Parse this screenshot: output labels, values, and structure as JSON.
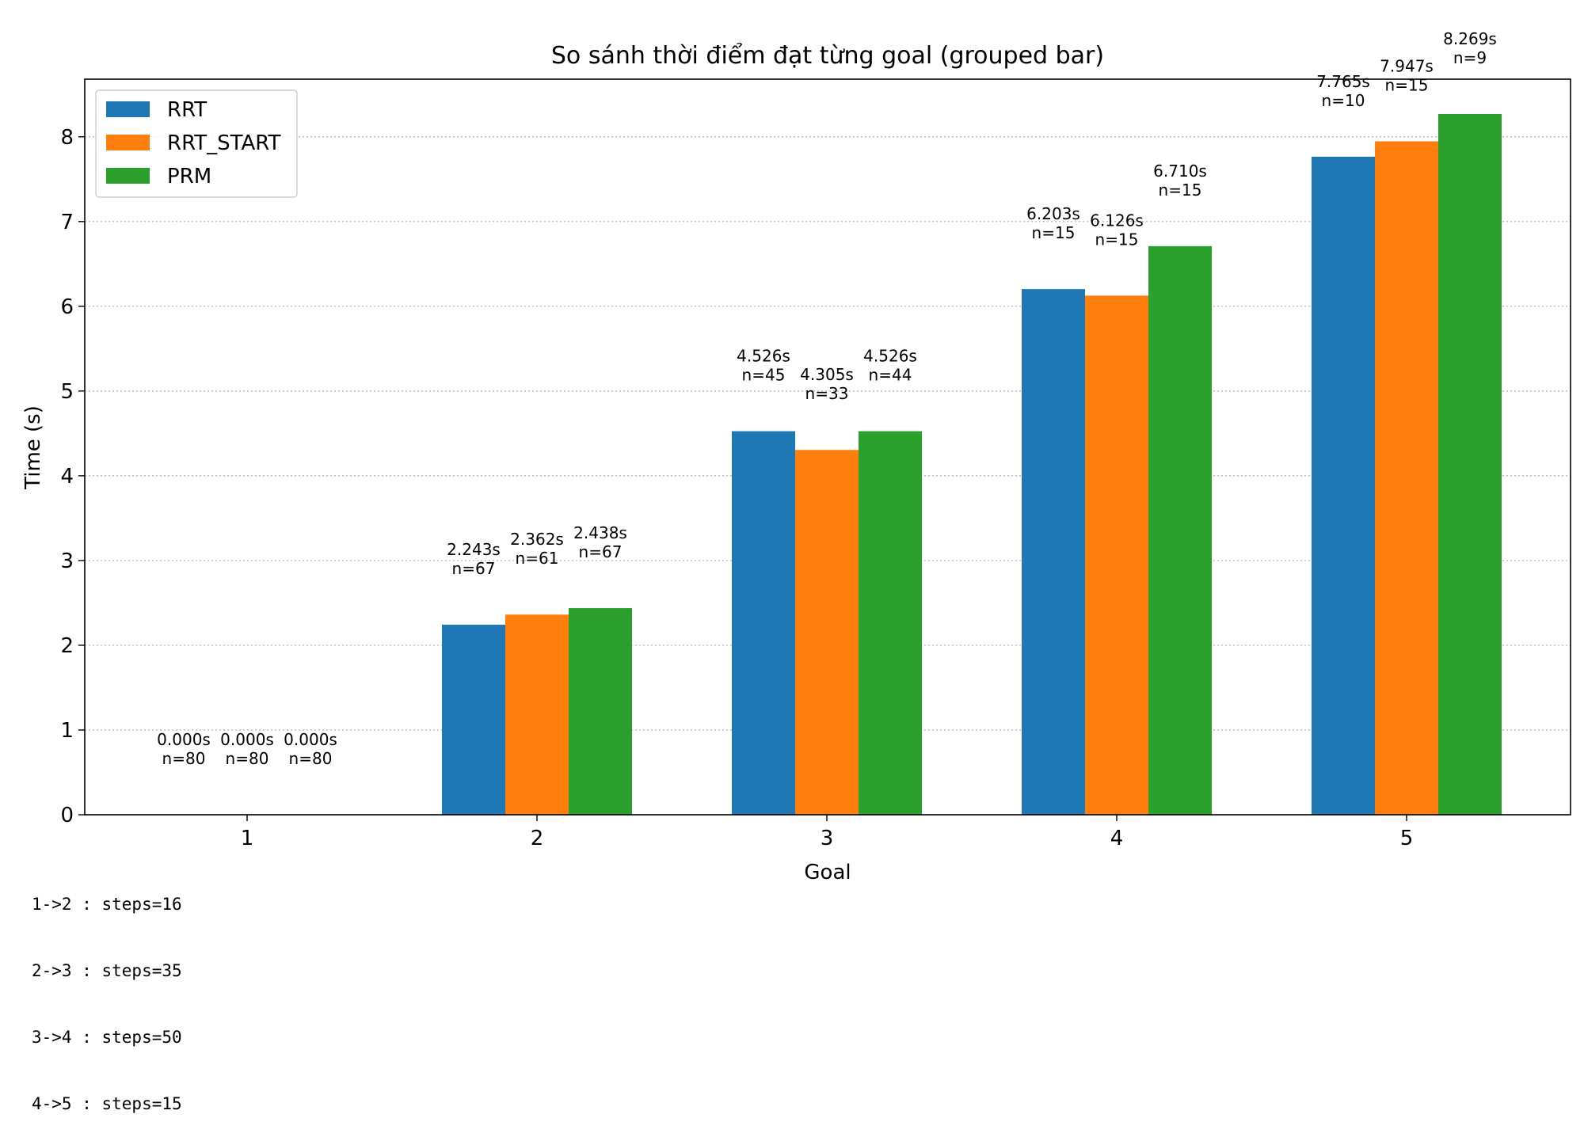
{
  "chart_data": {
    "type": "bar",
    "title": "So sánh thời điểm đạt từng goal (grouped bar)",
    "xlabel": "Goal",
    "ylabel": "Time (s)",
    "categories": [
      "1",
      "2",
      "3",
      "4",
      "5"
    ],
    "ylim": [
      0,
      8.68
    ],
    "yticks": [
      "0",
      "1",
      "2",
      "3",
      "4",
      "5",
      "6",
      "7",
      "8"
    ],
    "grid": "y-dotted",
    "legend_position": "top-left",
    "series": [
      {
        "name": "RRT",
        "color": "#1f77b4",
        "values": [
          0.0,
          2.243,
          4.526,
          6.203,
          7.765
        ],
        "labels": [
          "0.000s",
          "2.243s",
          "4.526s",
          "6.203s",
          "7.765s"
        ],
        "counts": [
          "n=80",
          "n=67",
          "n=45",
          "n=15",
          "n=10"
        ]
      },
      {
        "name": "RRT_START",
        "color": "#ff7f0e",
        "values": [
          0.0,
          2.362,
          4.305,
          6.126,
          7.947
        ],
        "labels": [
          "0.000s",
          "2.362s",
          "4.305s",
          "6.126s",
          "7.947s"
        ],
        "counts": [
          "n=80",
          "n=61",
          "n=33",
          "n=15",
          "n=15"
        ]
      },
      {
        "name": "PRM",
        "color": "#2ca02c",
        "values": [
          0.0,
          2.438,
          4.526,
          6.71,
          8.269
        ],
        "labels": [
          "0.000s",
          "2.438s",
          "4.526s",
          "6.710s",
          "8.269s"
        ],
        "counts": [
          "n=80",
          "n=67",
          "n=44",
          "n=15",
          "n=9"
        ]
      }
    ]
  },
  "footnote": [
    "1->2 : steps=16",
    "2->3 : steps=35",
    "3->4 : steps=50",
    "4->5 : steps=15"
  ]
}
